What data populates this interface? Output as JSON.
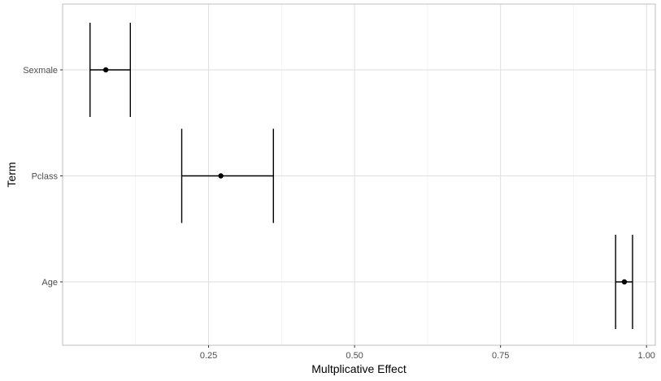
{
  "chart_data": {
    "type": "errorbar",
    "xlabel": "Multplicative Effect",
    "ylabel": "Term",
    "xlim": [
      0.0,
      1.015
    ],
    "x_ticks": [
      0.25,
      0.5,
      0.75,
      1.0
    ],
    "x_tick_labels": [
      "0.25",
      "0.50",
      "0.75",
      "1.00"
    ],
    "terms": [
      "Sexmale",
      "Pclass",
      "Age"
    ],
    "points": [
      {
        "term": "Sexmale",
        "estimate": 0.074,
        "lower": 0.047,
        "upper": 0.116
      },
      {
        "term": "Pclass",
        "estimate": 0.271,
        "lower": 0.204,
        "upper": 0.361
      },
      {
        "term": "Age",
        "estimate": 0.962,
        "lower": 0.947,
        "upper": 0.976
      }
    ],
    "grid": true,
    "colors": {
      "panel_border": "#bfbfbf",
      "grid_major": "#dedede",
      "grid_minor": "#efefef",
      "mark": "#000000",
      "text": "#4d4d4d"
    }
  }
}
